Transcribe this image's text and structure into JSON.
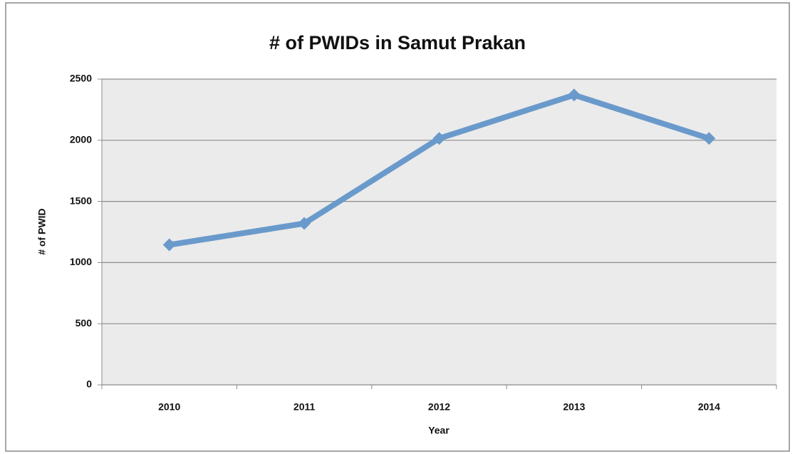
{
  "chart_data": {
    "type": "line",
    "title": "# of PWIDs in Samut Prakan",
    "x_label": "Year",
    "y_label": "# of PWID",
    "categories": [
      "2010",
      "2011",
      "2012",
      "2013",
      "2014"
    ],
    "series": [
      {
        "name": "# of PWID",
        "color": "#6a9acb",
        "values": [
          1145,
          1320,
          2015,
          2370,
          2015
        ]
      }
    ],
    "ylim": [
      0,
      2500
    ],
    "yticks": [
      0,
      500,
      1000,
      1500,
      2000,
      2500
    ],
    "grid": true
  }
}
